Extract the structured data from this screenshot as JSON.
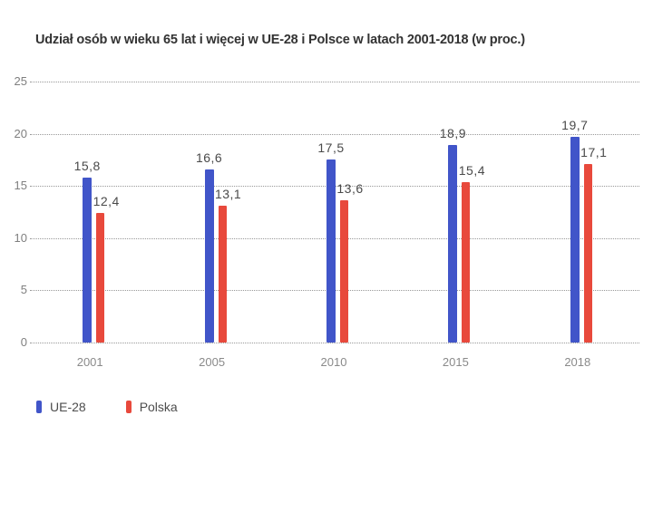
{
  "chart_data": {
    "type": "bar",
    "title": "Udział osób w wieku 65 lat i więcej w UE-28 i Polsce w latach 2001-2018 (w proc.)",
    "categories": [
      "2001",
      "2005",
      "2010",
      "2015",
      "2018"
    ],
    "series": [
      {
        "name": "UE-28",
        "color": "#4155c9",
        "values": [
          15.8,
          16.6,
          17.5,
          18.9,
          19.7
        ]
      },
      {
        "name": "Polska",
        "color": "#e8493c",
        "values": [
          12.4,
          13.1,
          13.6,
          15.4,
          17.1
        ]
      }
    ],
    "value_labels": {
      "UE-28": [
        "15,8",
        "16,6",
        "17,5",
        "18,9",
        "19,7"
      ],
      "Polska": [
        "12,4",
        "13,1",
        "13,6",
        "15,4",
        "17,1"
      ]
    },
    "xlabel": "",
    "ylabel": "",
    "ylim": [
      0,
      25
    ],
    "yticks": [
      0,
      5,
      10,
      15,
      20,
      25
    ],
    "grid": "horizontal-dotted",
    "gridline_color": "#999999",
    "legend_position": "bottom-left",
    "decimal_separator": ","
  },
  "legend": {
    "items": [
      {
        "label": "UE-28",
        "color": "#4155c9"
      },
      {
        "label": "Polska",
        "color": "#e8493c"
      }
    ]
  }
}
